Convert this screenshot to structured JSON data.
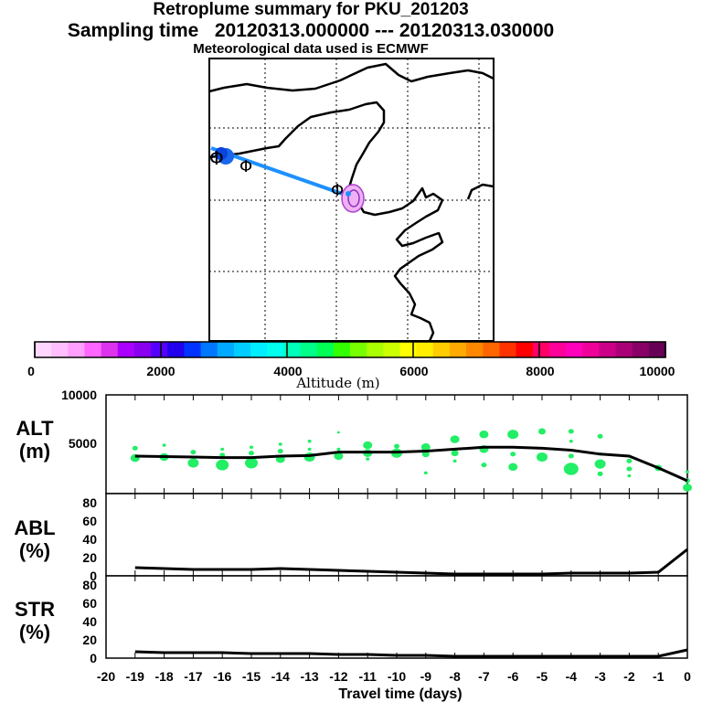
{
  "header": {
    "title": "Retroplume summary for PKU_201203",
    "sampling": "Sampling time   20120313.000000 --- 20120313.030000",
    "met": "Meteorological data used is ECMWF"
  },
  "colorbar": {
    "ticks": [
      "0",
      "2000",
      "4000",
      "6000",
      "8000",
      "10000"
    ],
    "label": "Altitude (m)",
    "colors": [
      "#ffd6ff",
      "#ffbfff",
      "#ff9fff",
      "#ff66ff",
      "#dd33ee",
      "#aa00ff",
      "#8800ee",
      "#5500ff",
      "#2200ee",
      "#0033ff",
      "#0077ff",
      "#00aaff",
      "#00ccff",
      "#00eeff",
      "#00ffee",
      "#00ffbb",
      "#00ff88",
      "#00ff55",
      "#33ff00",
      "#77ff00",
      "#aaff00",
      "#ccff00",
      "#ffff00",
      "#ffee00",
      "#ffcc00",
      "#ffaa00",
      "#ff8800",
      "#ff6600",
      "#ff3300",
      "#ff0000",
      "#ff0066",
      "#ff0099",
      "#ff00bb",
      "#ee0099",
      "#cc0088",
      "#aa0077",
      "#880066",
      "#660055"
    ]
  },
  "map": {
    "track_color": "#1e90ff",
    "point_marker": "Φ"
  },
  "chart_data": [
    {
      "type": "line",
      "panel": "altitude",
      "ylabel": "ALT\n(m)",
      "ylabel_line1": "ALT",
      "ylabel_line2": "(m)",
      "y_tick_top": "10000",
      "y_tick_mid": "5000",
      "ylim": [
        0,
        10000
      ],
      "x": [
        -20,
        -19,
        -18,
        -17,
        -16,
        -15,
        -14,
        -13,
        -12,
        -11,
        -10,
        -9,
        -8,
        -7,
        -6,
        -5,
        -4,
        -3,
        -2,
        -1,
        0
      ],
      "values": [
        null,
        3800,
        3750,
        3700,
        3650,
        3650,
        3800,
        3850,
        4200,
        4200,
        4200,
        4300,
        4500,
        4700,
        4700,
        4600,
        4400,
        4000,
        3800,
        2600,
        1300
      ],
      "dots": [
        {
          "x": -19,
          "y": 3600,
          "s": 5
        },
        {
          "x": -19,
          "y": 4600,
          "s": 3
        },
        {
          "x": -18,
          "y": 3700,
          "s": 5
        },
        {
          "x": -18,
          "y": 4900,
          "s": 2
        },
        {
          "x": -17,
          "y": 3100,
          "s": 6
        },
        {
          "x": -17,
          "y": 4200,
          "s": 3
        },
        {
          "x": -16,
          "y": 2900,
          "s": 7
        },
        {
          "x": -16,
          "y": 3900,
          "s": 3
        },
        {
          "x": -16,
          "y": 4500,
          "s": 2
        },
        {
          "x": -15,
          "y": 3100,
          "s": 7
        },
        {
          "x": -15,
          "y": 4100,
          "s": 3
        },
        {
          "x": -15,
          "y": 4700,
          "s": 2
        },
        {
          "x": -14,
          "y": 3500,
          "s": 5
        },
        {
          "x": -14,
          "y": 4300,
          "s": 3
        },
        {
          "x": -14,
          "y": 5000,
          "s": 2
        },
        {
          "x": -13,
          "y": 3700,
          "s": 6
        },
        {
          "x": -13,
          "y": 4500,
          "s": 2
        },
        {
          "x": -13,
          "y": 5300,
          "s": 2
        },
        {
          "x": -12,
          "y": 3800,
          "s": 5
        },
        {
          "x": -12,
          "y": 4500,
          "s": 2
        },
        {
          "x": -12,
          "y": 6200,
          "s": 1.5
        },
        {
          "x": -11,
          "y": 4100,
          "s": 5
        },
        {
          "x": -11,
          "y": 4900,
          "s": 5
        },
        {
          "x": -11,
          "y": 3500,
          "s": 2
        },
        {
          "x": -10,
          "y": 4100,
          "s": 6
        },
        {
          "x": -10,
          "y": 4800,
          "s": 3
        },
        {
          "x": -9,
          "y": 4000,
          "s": 4
        },
        {
          "x": -9,
          "y": 4700,
          "s": 5
        },
        {
          "x": -9,
          "y": 2100,
          "s": 2
        },
        {
          "x": -8,
          "y": 4100,
          "s": 4
        },
        {
          "x": -8,
          "y": 5500,
          "s": 5
        },
        {
          "x": -8,
          "y": 3300,
          "s": 2
        },
        {
          "x": -7,
          "y": 4500,
          "s": 5
        },
        {
          "x": -7,
          "y": 6000,
          "s": 5
        },
        {
          "x": -7,
          "y": 2900,
          "s": 3
        },
        {
          "x": -6,
          "y": 4000,
          "s": 3
        },
        {
          "x": -6,
          "y": 6000,
          "s": 6
        },
        {
          "x": -6,
          "y": 2700,
          "s": 5
        },
        {
          "x": -5,
          "y": 3700,
          "s": 6
        },
        {
          "x": -5,
          "y": 6300,
          "s": 4
        },
        {
          "x": -4,
          "y": 3800,
          "s": 3
        },
        {
          "x": -4,
          "y": 2500,
          "s": 8
        },
        {
          "x": -4,
          "y": 6300,
          "s": 3
        },
        {
          "x": -4,
          "y": 5300,
          "s": 2
        },
        {
          "x": -3,
          "y": 3000,
          "s": 6
        },
        {
          "x": -3,
          "y": 5800,
          "s": 3
        },
        {
          "x": -3,
          "y": 4000,
          "s": 2
        },
        {
          "x": -3,
          "y": 2000,
          "s": 3
        },
        {
          "x": -2,
          "y": 3300,
          "s": 3
        },
        {
          "x": -2,
          "y": 2500,
          "s": 3
        },
        {
          "x": -2,
          "y": 1800,
          "s": 2
        },
        {
          "x": -1,
          "y": 2600,
          "s": 4
        },
        {
          "x": 0,
          "y": 1300,
          "s": 3
        },
        {
          "x": 0,
          "y": 600,
          "s": 5
        },
        {
          "x": 0,
          "y": 2200,
          "s": 2
        }
      ],
      "dot_color": "#22ee66"
    },
    {
      "type": "line",
      "panel": "abl",
      "ylabel": "ABL\n(%)",
      "ylabel_line1": "ABL",
      "ylabel_line2": "(%)",
      "y_ticks": [
        "80",
        "60",
        "40",
        "20",
        "0"
      ],
      "ylim": [
        0,
        90
      ],
      "x": [
        -20,
        -19,
        -18,
        -17,
        -16,
        -15,
        -14,
        -13,
        -12,
        -11,
        -10,
        -9,
        -8,
        -7,
        -6,
        -5,
        -4,
        -3,
        -2,
        -1,
        0
      ],
      "values": [
        null,
        9,
        8,
        7,
        7,
        7,
        8,
        7,
        6,
        5,
        4,
        3,
        2,
        2,
        2,
        2,
        3,
        3,
        3,
        4,
        29
      ]
    },
    {
      "type": "line",
      "panel": "str",
      "ylabel": "STR\n(%)",
      "ylabel_line1": "STR",
      "ylabel_line2": "(%)",
      "y_ticks": [
        "80",
        "60",
        "40",
        "20",
        "0"
      ],
      "ylim": [
        0,
        90
      ],
      "x": [
        -20,
        -19,
        -18,
        -17,
        -16,
        -15,
        -14,
        -13,
        -12,
        -11,
        -10,
        -9,
        -8,
        -7,
        -6,
        -5,
        -4,
        -3,
        -2,
        -1,
        0
      ],
      "values": [
        null,
        7,
        6,
        6,
        6,
        5,
        5,
        5,
        4,
        4,
        3,
        3,
        2,
        2,
        2,
        2,
        2,
        2,
        2,
        2,
        9
      ],
      "xlabel": "Travel time (days)",
      "x_tick_labels": [
        "-20",
        "-19",
        "-18",
        "-17",
        "-16",
        "-15",
        "-14",
        "-13",
        "-12",
        "-11",
        "-10",
        "-9",
        "-8",
        "-7",
        "-6",
        "-5",
        "-4",
        "-3",
        "-2",
        "-1",
        "0"
      ]
    }
  ]
}
